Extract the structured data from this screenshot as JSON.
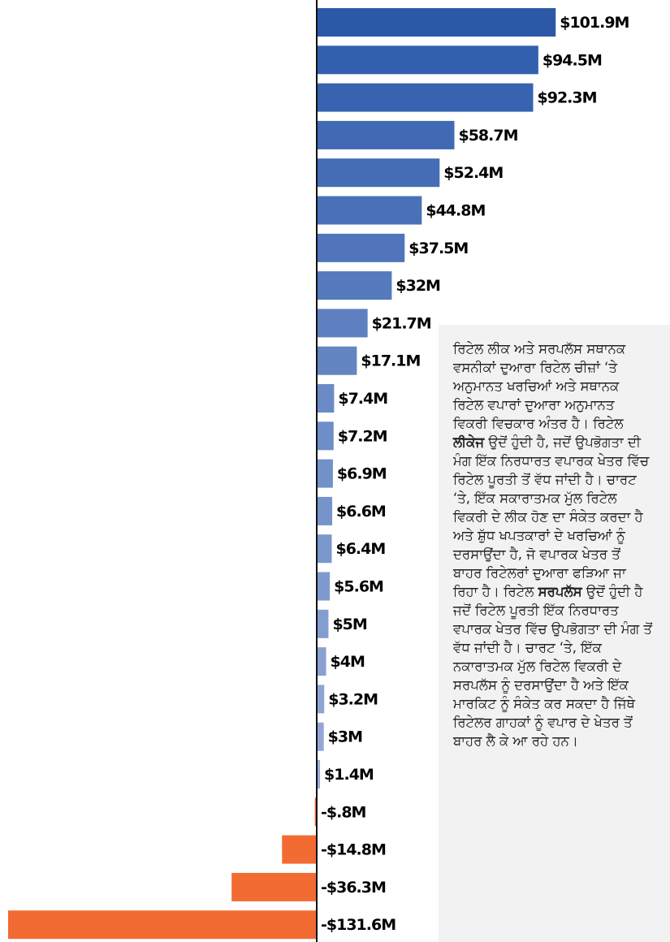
{
  "chart_data": {
    "type": "barh",
    "values": [
      101.9,
      94.5,
      92.3,
      58.7,
      52.4,
      44.8,
      37.5,
      32,
      21.7,
      17.1,
      7.4,
      7.2,
      6.9,
      6.6,
      6.4,
      5.6,
      5,
      4,
      3.2,
      3,
      1.4,
      -0.8,
      -14.8,
      -36.3,
      -131.6
    ],
    "value_labels": [
      "$101.9M",
      "$94.5M",
      "$92.3M",
      "$58.7M",
      "$52.4M",
      "$44.8M",
      "$37.5M",
      "$32M",
      "$21.7M",
      "$17.1M",
      "$7.4M",
      "$7.2M",
      "$6.9M",
      "$6.6M",
      "$6.4M",
      "$5.6M",
      "$5M",
      "$4M",
      "$3.2M",
      "$3M",
      "$1.4M",
      "-$.8M",
      "-$14.8M",
      "-$36.3M",
      "-$131.6M"
    ],
    "colors": [
      "#2c58a8",
      "#3360ae",
      "#3763b0",
      "#4169b4",
      "#456db6",
      "#4a71b8",
      "#5075ba",
      "#557abd",
      "#5e80c0",
      "#6385c2",
      "#6b8bc6",
      "#6e8ec7",
      "#7291c9",
      "#7694cb",
      "#7a97cc",
      "#8099cf",
      "#849dd1",
      "#89a1d3",
      "#8ea4d5",
      "#92a7d7",
      "#98abd9",
      "#f26b32",
      "#f26b32",
      "#f26b32",
      "#f26b32"
    ],
    "annotation": [
      "ਰਿਟੇਲ ਲੀਕ ਅਤੇ ਸਰਪਲੱਸ ਸਥਾਨਕ ਵਸਨੀਕਾਂ ਦੁਆਰਾ ਰਿਟੇਲ ਚੀਜ਼ਾਂ ‘ਤੇ ਅਨੁਮਾਨਤ ਖਰਚਿਆਂ ਅਤੇ ਸਥਾਨਕ ਰਿਟੇਲ ਵਪਾਰਾਂ ਦੁਆਰਾ ਅਨੁਮਾਨਤ ਵਿਕਰੀ ਵਿਚਕਾਰ ਅੰਤਰ ਹੈ। ਰਿਟੇਲ ",
      "ਲੀਕੇਜ",
      " ਉਦੋਂ ਹੁੰਦੀ ਹੈ, ਜਦੋਂ ਉਪਭੋਗਤਾ ਦੀ ਮੰਗ ਇੱਕ ਨਿਰਧਾਰਤ ਵਪਾਰਕ ਖੇਤਰ ਵਿੱਚ ਰਿਟੇਲ ਪੂਰਤੀ ਤੋਂ ਵੱਧ ਜਾਂਦੀ ਹੈ। ਚਾਰਟ ‘ਤੇ, ਇੱਕ ਸਕਾਰਾਤਮਕ ਮੁੱਲ ਰਿਟੇਲ ਵਿਕਰੀ ਦੇ ਲੀਕ ਹੋਣ ਦਾ ਸੰਕੇਤ ਕਰਦਾ ਹੈ ਅਤੇ ਸ਼ੁੱਧ ਖਪਤਕਾਰਾਂ ਦੇ ਖਰਚਿਆਂ ਨੂੰ ਦਰਸਾਉਂਦਾ ਹੈ, ਜੋ ਵਪਾਰਕ ਖੇਤਰ ਤੋਂ ਬਾਹਰ ਰਿਟੇਲਰਾਂ ਦੁਆਰਾ ਫੜਿਆ ਜਾ ਰਿਹਾ ਹੈ। ਰਿਟੇਲ ",
      "ਸਰਪਲੱਸ",
      " ਉਦੋਂ ਹੁੰਦੀ ਹੈ ਜਦੋਂ ਰਿਟੇਲ ਪੂਰਤੀ ਇੱਕ ਨਿਰਧਾਰਤ ਵਪਾਰਕ ਖੇਤਰ ਵਿੱਚ ਉਪਭੋਗਤਾ ਦੀ ਮੰਗ ਤੋਂ ਵੱਧ ਜਾਂਦੀ ਹੈ। ਚਾਰਟ ‘ਤੇ, ਇੱਕ ਨਕਾਰਾਤਮਕ ਮੁੱਲ ਰਿਟੇਲ ਵਿਕਰੀ ਦੇ ਸਰਪਲੱਸ ਨੂੰ ਦਰਸਾਉਂਦਾ ਹੈ ਅਤੇ ਇੱਕ ਮਾਰਕਿਟ ਨੂੰ ਸੰਕੇਤ ਕਰ ਸਕਦਾ ਹੈ ਜਿੱਥੇ ਰਿਟੇਲਰ ਗਾਹਕਾਂ ਨੂੰ ਵਪਾਰ ਦੇ ਖੇਤਰ ਤੋਂ ਬਾਹਰ ਲੈ ਕੇ ਆ ਰਹੇ ਹਨ।"
    ]
  }
}
